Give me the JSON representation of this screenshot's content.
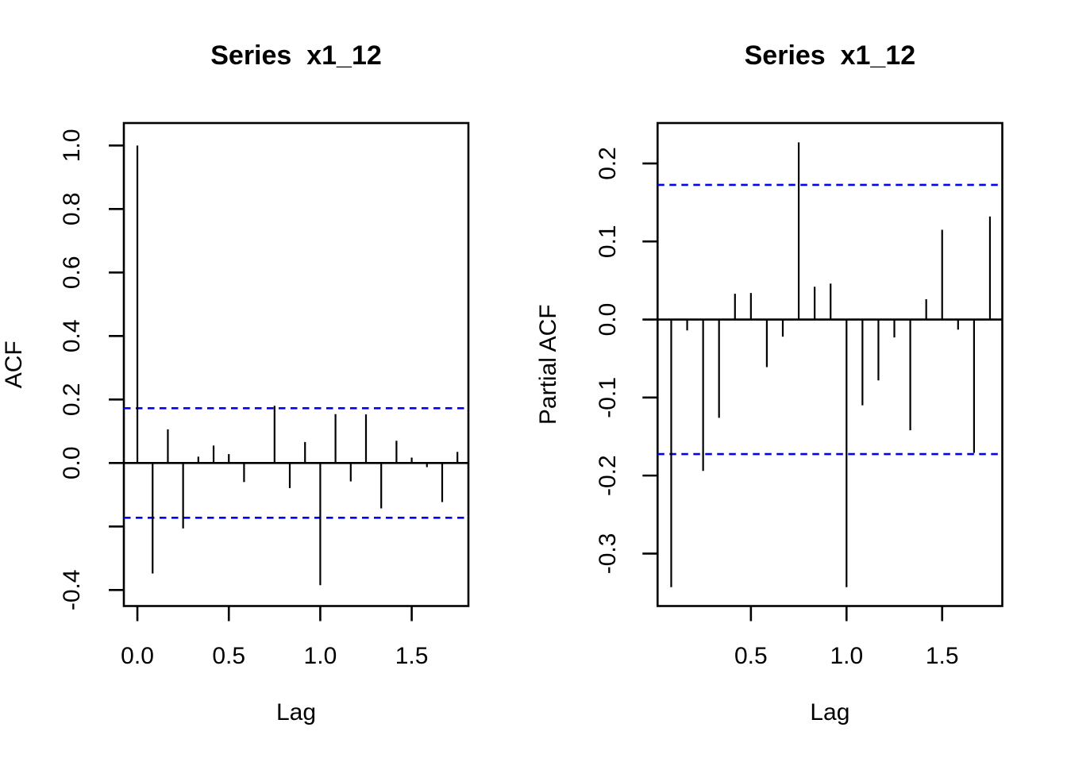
{
  "figure": {
    "background": "#FFFFFF",
    "bar_color": "#000000",
    "axis_color": "#000000",
    "conf_color": "#0000FF"
  },
  "chart_data": [
    {
      "type": "stem",
      "panel": "acf",
      "title": "Series  x1_12",
      "xlabel": "Lag",
      "ylabel": "ACF",
      "legend": "none",
      "grid": false,
      "conf_level": 0.1725,
      "conf_style": "dashed",
      "xlim": [
        -0.074,
        1.81
      ],
      "ylim": [
        -0.4505,
        1.0708
      ],
      "x": [
        0,
        0.0833,
        0.1667,
        0.25,
        0.3333,
        0.4167,
        0.5,
        0.5833,
        0.6667,
        0.75,
        0.8333,
        0.9167,
        1.0,
        1.0833,
        1.1667,
        1.25,
        1.3333,
        1.4167,
        1.5,
        1.5833,
        1.6667,
        1.75
      ],
      "values": [
        1.0,
        -0.348,
        0.106,
        -0.206,
        0.02,
        0.055,
        0.028,
        -0.06,
        0.003,
        0.18,
        -0.079,
        0.066,
        -0.385,
        0.154,
        -0.058,
        0.153,
        -0.143,
        0.07,
        0.017,
        -0.013,
        -0.123,
        0.035
      ],
      "xticks": [
        {
          "v": 0.0,
          "label": "0.0"
        },
        {
          "v": 0.5,
          "label": "0.5"
        },
        {
          "v": 1.0,
          "label": "1.0"
        },
        {
          "v": 1.5,
          "label": "1.5"
        }
      ],
      "yticks": [
        {
          "v": 1.0,
          "label": "1.0"
        },
        {
          "v": 0.8,
          "label": "0.8"
        },
        {
          "v": 0.6,
          "label": "0.6"
        },
        {
          "v": 0.4,
          "label": "0.4"
        },
        {
          "v": 0.2,
          "label": "0.2"
        },
        {
          "v": 0.0,
          "label": "0.0"
        },
        {
          "v": -0.2,
          "label": ""
        },
        {
          "v": -0.4,
          "label": "-0.4"
        }
      ]
    },
    {
      "type": "stem",
      "panel": "pacf",
      "title": "Series  x1_12",
      "xlabel": "Lag",
      "ylabel": "Partial ACF",
      "legend": "none",
      "grid": false,
      "conf_level": 0.1725,
      "conf_style": "dashed",
      "xlim": [
        0.012,
        1.8145
      ],
      "ylim": [
        -0.3672,
        0.2518
      ],
      "x": [
        0.0833,
        0.1667,
        0.25,
        0.3333,
        0.4167,
        0.5,
        0.5833,
        0.6667,
        0.75,
        0.8333,
        0.9167,
        1.0,
        1.0833,
        1.1667,
        1.25,
        1.3333,
        1.4167,
        1.5,
        1.5833,
        1.6667,
        1.75
      ],
      "values": [
        -0.343,
        -0.014,
        -0.194,
        -0.126,
        0.033,
        0.034,
        -0.061,
        -0.022,
        0.227,
        0.042,
        0.046,
        -0.343,
        -0.11,
        -0.078,
        -0.023,
        -0.142,
        0.026,
        0.115,
        -0.013,
        -0.171,
        0.132
      ],
      "xticks": [
        {
          "v": 0.5,
          "label": "0.5"
        },
        {
          "v": 1.0,
          "label": "1.0"
        },
        {
          "v": 1.5,
          "label": "1.5"
        }
      ],
      "yticks": [
        {
          "v": 0.2,
          "label": "0.2"
        },
        {
          "v": 0.1,
          "label": "0.1"
        },
        {
          "v": 0.0,
          "label": "0.0"
        },
        {
          "v": -0.1,
          "label": "-0.1"
        },
        {
          "v": -0.2,
          "label": "-0.2"
        },
        {
          "v": -0.3,
          "label": "-0.3"
        }
      ]
    }
  ]
}
